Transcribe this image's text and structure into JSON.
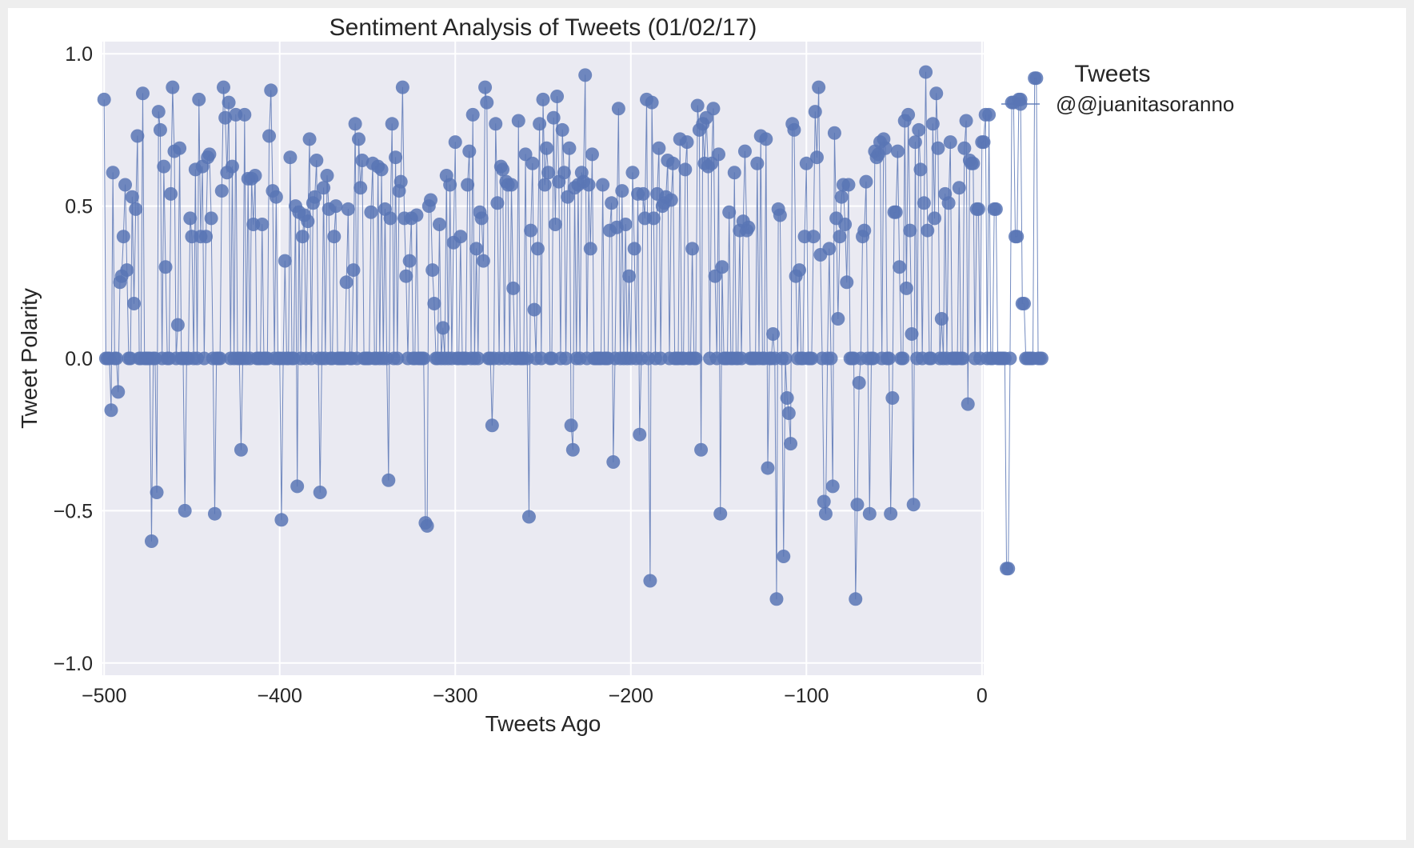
{
  "chart_data": {
    "type": "line",
    "title": "Sentiment Analysis of Tweets (01/02/17)",
    "xlabel": "Tweets Ago",
    "ylabel": "Tweet Polarity",
    "xlim": [
      -501,
      1
    ],
    "ylim": [
      -1.04,
      1.04
    ],
    "xticks": [
      -500,
      -400,
      -300,
      -200,
      -100,
      0
    ],
    "xtick_labels": [
      "−500",
      "−400",
      "−300",
      "−200",
      "−100",
      "0"
    ],
    "yticks": [
      1.0,
      0.5,
      0.0,
      -0.5,
      -1.0
    ],
    "ytick_labels": [
      "1.0",
      "0.5",
      "0.0",
      "−0.5",
      "−1.0"
    ],
    "grid": true,
    "legend_position": "outside-right-top",
    "legend_title": "Tweets",
    "marker": "circle",
    "colors": {
      "series": "#5975b5",
      "background": "#eaeaf2",
      "grid": "#ffffff"
    },
    "series": [
      {
        "name": "@@juanitasoranno",
        "x_start": -500,
        "x_step": 1,
        "y": [
          0.85,
          0,
          0,
          0,
          -0.17,
          0.61,
          0,
          0,
          -0.11,
          0.25,
          0.27,
          0.4,
          0.57,
          0.29,
          0,
          0,
          0.53,
          0.18,
          0.49,
          0.73,
          0,
          0,
          0.87,
          0,
          0,
          0,
          0,
          -0.6,
          0,
          0,
          -0.44,
          0.81,
          0.75,
          0,
          0.63,
          0.3,
          0,
          0,
          0.54,
          0.89,
          0.68,
          0,
          0.11,
          0.69,
          0,
          0,
          -0.5,
          0,
          0,
          0.46,
          0.4,
          0,
          0.62,
          0,
          0.85,
          0.4,
          0.63,
          0,
          0.4,
          0.66,
          0.67,
          0.46,
          0,
          -0.51,
          0,
          0,
          0,
          0.55,
          0.89,
          0.79,
          0.61,
          0.84,
          0,
          0.63,
          0,
          0.8,
          0,
          0,
          -0.3,
          0,
          0.8,
          0,
          0.59,
          0,
          0.59,
          0.44,
          0.6,
          0,
          0,
          0,
          0.44,
          0,
          0,
          0,
          0.73,
          0.88,
          0.55,
          0,
          0.53,
          0,
          0,
          -0.53,
          0,
          0.32,
          0,
          0,
          0.66,
          0,
          0,
          0.5,
          -0.42,
          0.48,
          0,
          0.4,
          0.47,
          0,
          0.45,
          0.72,
          0,
          0.51,
          0.53,
          0.65,
          0,
          -0.44,
          0,
          0.56,
          0,
          0.6,
          0.49,
          0,
          0,
          0.4,
          0.5,
          0,
          0,
          0,
          0,
          0,
          0.25,
          0.49,
          0,
          0,
          0.29,
          0.77,
          0,
          0.72,
          0.56,
          0.65,
          0,
          0,
          0,
          0,
          0.48,
          0.64,
          0,
          0,
          0.63,
          0,
          0.62,
          0,
          0.49,
          0,
          -0.4,
          0.46,
          0.77,
          0,
          0.66,
          0,
          0.55,
          0.58,
          0.89,
          0.46,
          0.27,
          0,
          0.32,
          0.46,
          0,
          0,
          0.47,
          0,
          0,
          0,
          0,
          -0.54,
          -0.55,
          0.5,
          0.52,
          0.29,
          0.18,
          0,
          0,
          0.44,
          0,
          0.1,
          0,
          0.6,
          0,
          0.57,
          0,
          0.38,
          0.71,
          0,
          0,
          0.4,
          0,
          0,
          0,
          0.57,
          0.68,
          0,
          0.8,
          0,
          0.36,
          0,
          0.48,
          0.46,
          0.32,
          0.89,
          0.84,
          0,
          0,
          -0.22,
          0,
          0.77,
          0.51,
          0,
          0.63,
          0.62,
          0,
          0.58,
          0.57,
          0,
          0.57,
          0.23,
          0,
          0,
          0.78,
          0,
          0,
          0,
          0.67,
          0,
          -0.52,
          0.42,
          0.64,
          0.16,
          0,
          0.36,
          0.77,
          0,
          0.85,
          0.57,
          0.69,
          0.61,
          0,
          0,
          0.79,
          0.44,
          0.86,
          0.58,
          0,
          0.75,
          0.61,
          0,
          0.53,
          0.69,
          -0.22,
          -0.3,
          0.56,
          0,
          0.57,
          0,
          0.61,
          0.58,
          0.93,
          0,
          0.57,
          0.36,
          0.67,
          0,
          0,
          0,
          0,
          0,
          0.57,
          0,
          0,
          0,
          0.42,
          0.51,
          -0.34,
          0,
          0.43,
          0.82,
          0,
          0.55,
          0,
          0.44,
          0,
          0.27,
          0,
          0.61,
          0.36,
          0,
          0.54,
          -0.25,
          0,
          0.54,
          0.46,
          0.85,
          0,
          -0.73,
          0.84,
          0.46,
          0,
          0.54,
          0.69,
          0,
          0.5,
          0.51,
          0.53,
          0.65,
          0,
          0.52,
          0.64,
          0,
          0,
          0,
          0.72,
          0,
          0,
          0.62,
          0.71,
          0,
          0,
          0.36,
          0,
          0,
          0.83,
          0.75,
          -0.3,
          0.77,
          0.64,
          0.79,
          0.63,
          0,
          0.64,
          0.82,
          0.27,
          0,
          0.67,
          -0.51,
          0.3,
          0,
          0,
          0,
          0.48,
          0,
          0,
          0.61,
          0,
          0,
          0.42,
          0,
          0.45,
          0.68,
          0.42,
          0.43,
          0,
          0,
          0,
          0,
          0.64,
          0,
          0.73,
          0,
          0,
          0.72,
          -0.36,
          0,
          0,
          0.08,
          0,
          -0.79,
          0.49,
          0.47,
          0,
          -0.65,
          0,
          -0.13,
          -0.18,
          -0.28,
          0.77,
          0.75,
          0.27,
          0,
          0.29,
          0,
          0,
          0.4,
          0.64,
          0,
          0,
          0,
          0.4,
          0.81,
          0.66,
          0.89,
          0.34,
          0,
          -0.47,
          -0.51,
          0,
          0.36,
          0,
          -0.42,
          0.74,
          0.46,
          0.13,
          0.4,
          0.53,
          0.57,
          0.44,
          0.25,
          0.57,
          0,
          0,
          0,
          -0.79,
          -0.48,
          -0.08,
          0,
          0.4,
          0.42,
          0.58,
          0,
          -0.51,
          0,
          0,
          0.68,
          0.66,
          0.67,
          0.71,
          0,
          0.72,
          0.69,
          0,
          0,
          -0.51,
          -0.13,
          0.48,
          0.48,
          0.68,
          0.3,
          0,
          0,
          0.78,
          0.23,
          0.8,
          0.42,
          0.08,
          -0.48,
          0.71,
          0,
          0.75,
          0.62,
          0,
          0.51,
          0.94,
          0.42,
          0,
          0,
          0.77,
          0.46,
          0.87,
          0.69,
          0,
          0.13,
          0,
          0.54,
          0,
          0.51,
          0.71,
          0,
          0,
          0,
          0,
          0.56,
          0,
          0,
          0.69,
          0.78,
          -0.15,
          0.65,
          0.64,
          0.64,
          0,
          0.49,
          0.49,
          0,
          0.71,
          0.71,
          0.8,
          0,
          0.8,
          0,
          0,
          0.49,
          0.49,
          0,
          0,
          0,
          0,
          0,
          -0.69,
          -0.69,
          0,
          0.84,
          0.84,
          0.4,
          0.4,
          0.85,
          0.85,
          0.18,
          0.18,
          0,
          0,
          0,
          0,
          0,
          0.92,
          0.92,
          0,
          0,
          0
        ]
      }
    ]
  }
}
